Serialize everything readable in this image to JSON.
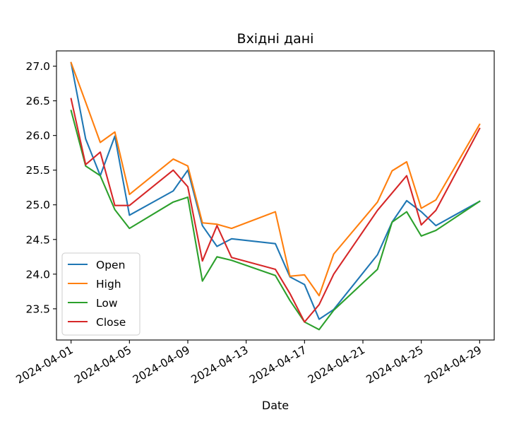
{
  "chart_data": {
    "type": "line",
    "title": "Вхідні дані",
    "xlabel": "Date",
    "ylabel": "",
    "x": [
      "2024-04-01",
      "2024-04-02",
      "2024-04-03",
      "2024-04-04",
      "2024-04-05",
      "2024-04-08",
      "2024-04-09",
      "2024-04-10",
      "2024-04-11",
      "2024-04-12",
      "2024-04-15",
      "2024-04-16",
      "2024-04-17",
      "2024-04-18",
      "2024-04-19",
      "2024-04-22",
      "2024-04-23",
      "2024-04-24",
      "2024-04-25",
      "2024-04-26",
      "2024-04-29"
    ],
    "xlim": [
      "2024-03-31",
      "2024-04-30"
    ],
    "xticks": [
      "2024-04-01",
      "2024-04-05",
      "2024-04-09",
      "2024-04-13",
      "2024-04-17",
      "2024-04-21",
      "2024-04-25",
      "2024-04-29"
    ],
    "ylim": [
      23.05,
      27.22
    ],
    "yticks": [
      "23.5",
      "24.0",
      "24.5",
      "25.0",
      "25.5",
      "26.0",
      "26.5",
      "27.0"
    ],
    "series": [
      {
        "name": "Open",
        "color": "#1f77b4",
        "values": [
          27.05,
          25.95,
          25.42,
          25.99,
          24.85,
          25.2,
          25.5,
          24.7,
          24.4,
          24.51,
          24.44,
          23.96,
          23.85,
          23.35,
          23.49,
          24.28,
          24.75,
          25.06,
          24.9,
          24.7,
          25.05
        ]
      },
      {
        "name": "High",
        "color": "#ff7f0e",
        "values": [
          27.05,
          26.48,
          25.9,
          26.05,
          25.15,
          25.66,
          25.56,
          24.74,
          24.72,
          24.66,
          24.9,
          23.97,
          23.99,
          23.69,
          24.29,
          25.04,
          25.49,
          25.62,
          24.95,
          25.07,
          26.16
        ]
      },
      {
        "name": "Low",
        "color": "#2ca02c",
        "values": [
          26.36,
          25.56,
          25.42,
          24.93,
          24.66,
          25.04,
          25.11,
          23.9,
          24.25,
          24.2,
          23.98,
          23.62,
          23.31,
          23.2,
          23.48,
          24.07,
          24.75,
          24.9,
          24.55,
          24.63,
          25.05
        ]
      },
      {
        "name": "Close",
        "color": "#d62728",
        "values": [
          26.53,
          25.58,
          25.76,
          24.99,
          24.99,
          25.5,
          25.26,
          24.19,
          24.7,
          24.24,
          24.07,
          23.72,
          23.31,
          23.56,
          24.0,
          24.92,
          25.17,
          25.42,
          24.71,
          24.92,
          26.1
        ]
      }
    ],
    "grid": false,
    "legend_position": "lower-left"
  }
}
